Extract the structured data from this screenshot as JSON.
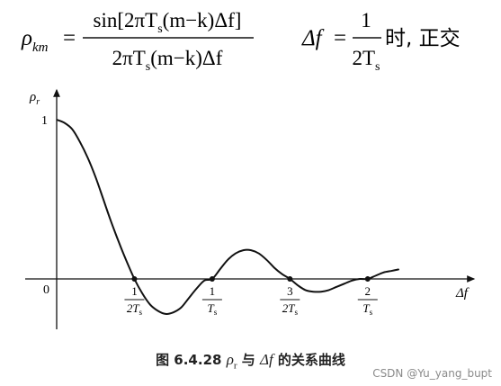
{
  "formula": {
    "lhs": "ρ",
    "lhs_sub": "km",
    "eq": "=",
    "numerator": "sin[2πT",
    "numerator_sub": "s",
    "numerator_rest": "(m−k)Δf]",
    "denominator": "2πT",
    "denominator_sub": "s",
    "denominator_rest": "(m−k)Δf",
    "condition_lhs": "Δf",
    "condition_eq": "=",
    "condition_num": "1",
    "condition_den": "2T",
    "condition_den_sub": "s",
    "condition_text": "时, 正交"
  },
  "chart_data": {
    "type": "line",
    "title": "",
    "xlabel": "Δf",
    "ylabel": "ρ",
    "ylabel_sub": "r",
    "origin_label": "0",
    "y_tick_label": "1",
    "xlim": [
      0,
      2.25
    ],
    "ylim": [
      -0.3,
      1.05
    ],
    "grid": false,
    "x_ticks": [
      {
        "value": 0.5,
        "num": "1",
        "den": "2T",
        "den_sub": "s"
      },
      {
        "value": 1.0,
        "num": "1",
        "den": "T",
        "den_sub": "s"
      },
      {
        "value": 1.5,
        "num": "3",
        "den": "2T",
        "den_sub": "s"
      },
      {
        "value": 2.0,
        "num": "2",
        "den": "T",
        "den_sub": "s"
      }
    ],
    "series": [
      {
        "color": "#111111",
        "x": [
          0,
          0.05,
          0.1,
          0.15,
          0.2,
          0.25,
          0.3,
          0.35,
          0.4,
          0.45,
          0.5,
          0.55,
          0.6,
          0.65,
          0.7,
          0.75,
          0.8,
          0.85,
          0.9,
          0.95,
          1.0,
          1.05,
          1.1,
          1.15,
          1.2,
          1.25,
          1.3,
          1.35,
          1.4,
          1.45,
          1.5,
          1.55,
          1.6,
          1.65,
          1.7,
          1.75,
          1.8,
          1.85,
          1.9,
          1.95,
          2.0,
          2.05,
          2.1,
          2.15,
          2.2
        ],
        "y": [
          1.0,
          0.98,
          0.94,
          0.86,
          0.76,
          0.64,
          0.5,
          0.36,
          0.23,
          0.11,
          0.0,
          -0.09,
          -0.16,
          -0.2,
          -0.22,
          -0.21,
          -0.18,
          -0.12,
          -0.06,
          -0.01,
          0.0,
          0.06,
          0.12,
          0.16,
          0.18,
          0.18,
          0.16,
          0.12,
          0.07,
          0.03,
          0.0,
          -0.04,
          -0.07,
          -0.08,
          -0.08,
          -0.07,
          -0.05,
          -0.03,
          -0.01,
          0.0,
          0.0,
          0.02,
          0.04,
          0.05,
          0.06
        ]
      }
    ]
  },
  "caption": {
    "figure_number": "图 6.4.28",
    "rho": "ρ",
    "rho_sub": "r",
    "mid": " 与 ",
    "delta_f": "Δf",
    "tail": " 的关系曲线"
  },
  "watermark": "CSDN @Yu_yang_bupt"
}
